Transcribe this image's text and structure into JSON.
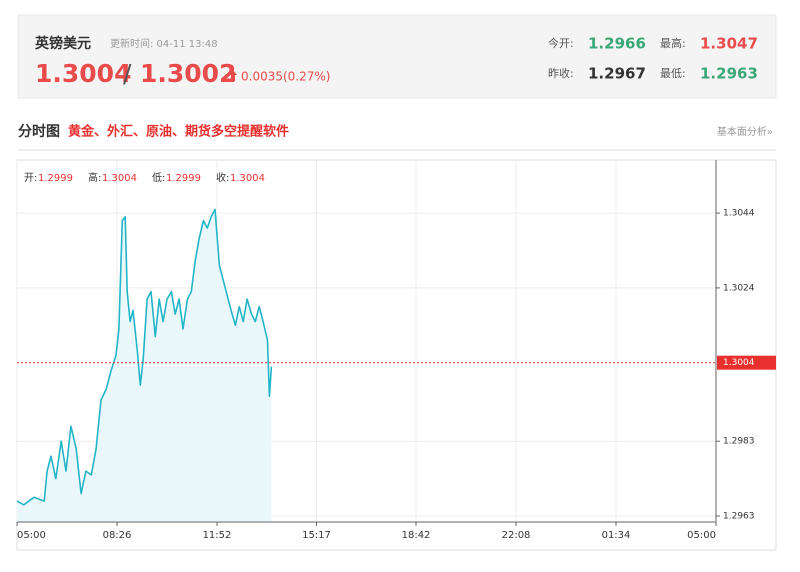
{
  "header": {
    "name": "英镑美元",
    "update_time": "更新时间: 04-11 13:48",
    "price": 1.3004,
    "price2": 1.3002,
    "change": "0.0035(0.27%)",
    "stats": [
      {
        "label": "今开:",
        "value": 1.2966,
        "color": "#3aa776"
      },
      {
        "label": "最高:",
        "value": 1.3047,
        "color": "#e94b4b"
      },
      {
        "label": "昨收:",
        "value": 1.2967,
        "color": "#333333"
      },
      {
        "label": "最低:",
        "value": 1.2963,
        "color": "#3aa776"
      }
    ]
  },
  "section": {
    "title": "分时图",
    "promo": "黄金、外汇、原油、期货多空提醒软件",
    "link": "基本面分析»"
  },
  "chart_data": {
    "type": "line",
    "ohlc": [
      {
        "label": "开:",
        "value": 1.2999
      },
      {
        "label": "高:",
        "value": 1.3004
      },
      {
        "label": "低:",
        "value": 1.2999
      },
      {
        "label": "收:",
        "value": 1.3004
      }
    ],
    "x": [
      0,
      14,
      35,
      56,
      62,
      70,
      80,
      91,
      101,
      111,
      122,
      132,
      142,
      153,
      163,
      173,
      184,
      194,
      204,
      210,
      217,
      223,
      227,
      233,
      239,
      248,
      254,
      260,
      268,
      276,
      285,
      293,
      301,
      309,
      318,
      326,
      334,
      342,
      351,
      359,
      367,
      375,
      384,
      392,
      400,
      408,
      417,
      425,
      433,
      441,
      450,
      458,
      466,
      474,
      483,
      491,
      499,
      507,
      516,
      520,
      524
    ],
    "values": [
      1.2967,
      1.2966,
      1.2968,
      1.2967,
      1.2975,
      1.2979,
      1.2973,
      1.2983,
      1.2975,
      1.2987,
      1.2981,
      1.2969,
      1.2975,
      1.2974,
      1.2981,
      1.2994,
      1.2997,
      1.3002,
      1.3006,
      1.3013,
      1.3042,
      1.3043,
      1.3023,
      1.3015,
      1.3018,
      1.3007,
      1.2998,
      1.3005,
      1.3021,
      1.3023,
      1.3011,
      1.3021,
      1.3015,
      1.3021,
      1.3023,
      1.3017,
      1.3021,
      1.3013,
      1.3021,
      1.3023,
      1.3031,
      1.3037,
      1.3042,
      1.304,
      1.3043,
      1.3045,
      1.303,
      1.3026,
      1.3022,
      1.3018,
      1.3014,
      1.3019,
      1.3015,
      1.3021,
      1.3017,
      1.3015,
      1.3019,
      1.3015,
      1.301,
      1.2995,
      1.3003
    ],
    "color": "#22b5c8",
    "area_color": "#eaf8fc",
    "last_price": 1.3004,
    "last_price_color": "#e8312f",
    "xlim": [
      0,
      1440
    ],
    "xticks": [
      {
        "value": 0,
        "label": "05:00"
      },
      {
        "value": 206,
        "label": "08:26"
      },
      {
        "value": 412,
        "label": "11:52"
      },
      {
        "value": 617,
        "label": "15:17"
      },
      {
        "value": 822,
        "label": "18:42"
      },
      {
        "value": 1028,
        "label": "22:08"
      },
      {
        "value": 1234,
        "label": "01:34"
      },
      {
        "value": 1440,
        "label": "05:00"
      }
    ],
    "ylim": [
      1.29614,
      1.30582
    ],
    "yticks": [
      1.2963,
      1.2983,
      1.3024,
      1.3044
    ],
    "grid": true
  }
}
